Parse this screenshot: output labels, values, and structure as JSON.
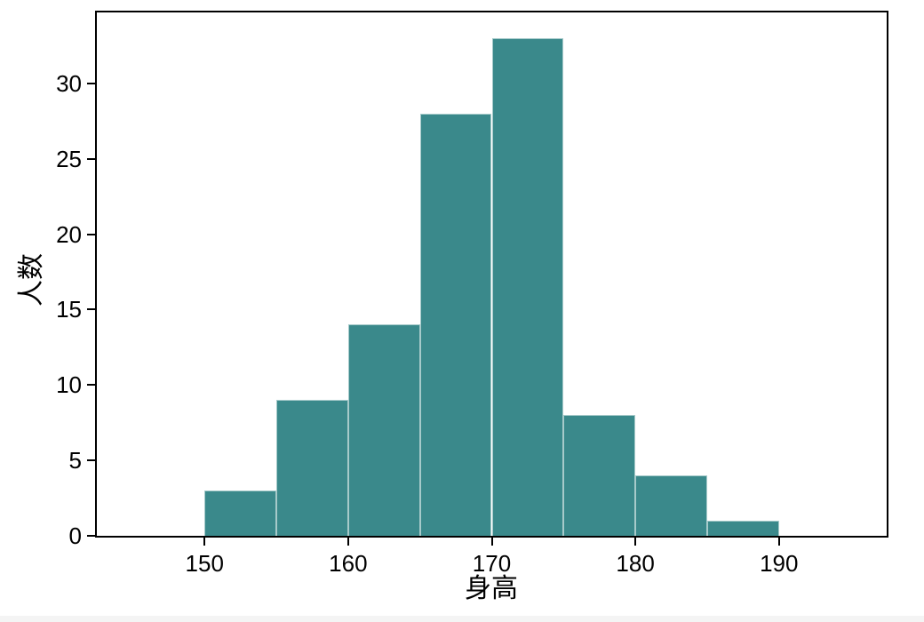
{
  "chart_data": {
    "type": "bar",
    "subtype": "histogram",
    "title": "",
    "xlabel": "身高",
    "ylabel": "人数",
    "bin_edges": [
      150,
      155,
      160,
      165,
      170,
      175,
      180,
      185,
      190
    ],
    "values": [
      3,
      9,
      14,
      28,
      33,
      8,
      4,
      1
    ],
    "xticks": [
      150,
      160,
      170,
      180,
      190
    ],
    "yticks": [
      0,
      5,
      10,
      15,
      20,
      25,
      30
    ],
    "xlim": [
      142.5,
      197.5
    ],
    "ylim": [
      0,
      34.7
    ],
    "grid": false,
    "legend": false,
    "bar_color": "#3a898b",
    "bar_edge_color": "rgba(255,255,255,0.55)",
    "axis_color": "#000000",
    "background_color": "#ffffff"
  }
}
